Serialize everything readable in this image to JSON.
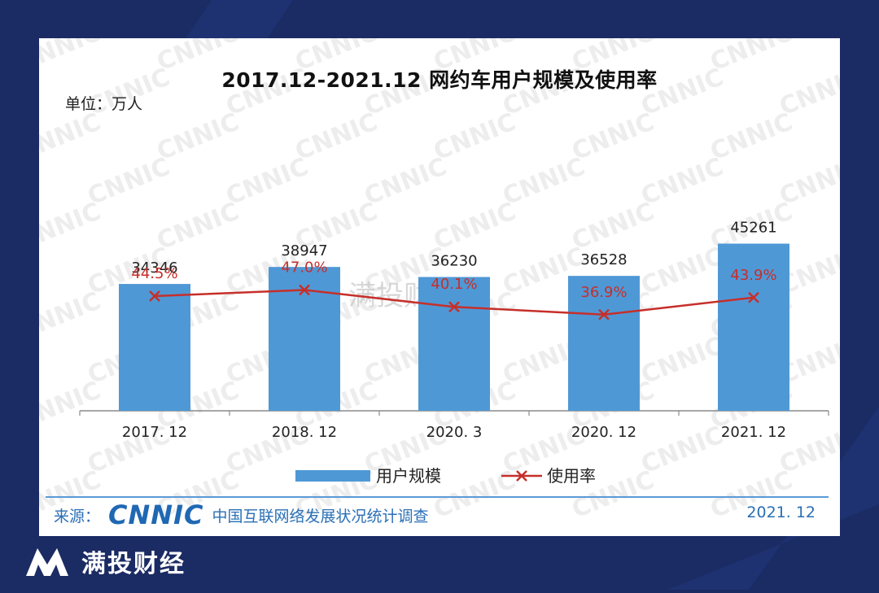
{
  "chart_data": {
    "type": "bar",
    "title": "2017.12-2021.12 网约车用户规模及使用率",
    "unit_label": "单位：万人",
    "categories": [
      "2017. 12",
      "2018. 12",
      "2020. 3",
      "2020. 12",
      "2021. 12"
    ],
    "series": [
      {
        "name": "用户规模",
        "kind": "bar",
        "values": [
          34346,
          38947,
          36230,
          36528,
          45261
        ],
        "labels": [
          "34346",
          "38947",
          "36230",
          "36528",
          "45261"
        ]
      },
      {
        "name": "使用率",
        "kind": "line",
        "values": [
          44.5,
          47.0,
          40.1,
          36.9,
          43.9
        ],
        "labels": [
          "44.5%",
          "47.0%",
          "40.1%",
          "36.9%",
          "43.9%"
        ]
      }
    ],
    "colors": {
      "bar": "#4f98d6",
      "line": "#c62f2a",
      "axis": "#8a8a8a"
    }
  },
  "source": {
    "prefix": "来源：",
    "logo_text": "CNNIC",
    "org": "中国互联网络发展状况统计调查",
    "date": "2021. 12"
  },
  "watermark": {
    "text": "CNNIC",
    "center_text": "满投财经"
  },
  "brand": {
    "name": "满投财经",
    "logo_icon": "m-logo-icon"
  }
}
